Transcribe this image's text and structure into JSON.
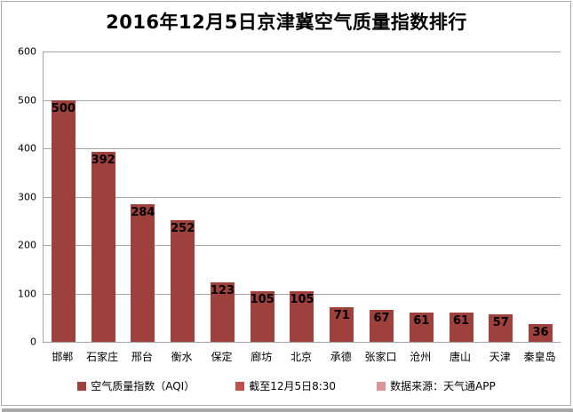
{
  "frame": {
    "background": "#FFFFFF",
    "border_color": "#ABABAB",
    "shadow_color": "#A9A9A9"
  },
  "chart_data": {
    "type": "bar",
    "title": "2016年12月5日京津冀空气质量指数排行",
    "categories": [
      "邯郸",
      "石家庄",
      "邢台",
      "衡水",
      "保定",
      "廊坊",
      "北京",
      "承德",
      "张家口",
      "沧州",
      "唐山",
      "天津",
      "秦皇岛"
    ],
    "values": [
      500,
      392,
      284,
      252,
      123,
      105,
      105,
      71,
      67,
      61,
      61,
      57,
      36
    ],
    "xlabel": "",
    "ylabel": "",
    "ylim": [
      0,
      600
    ],
    "yticks": [
      0,
      100,
      200,
      300,
      400,
      500,
      600
    ],
    "grid": true,
    "data_labels_position": "inside-end",
    "legend_position": "bottom",
    "bar_color": "#9E403C",
    "gridline_color": "#A6A6A6"
  },
  "legend": {
    "items": [
      {
        "label": "空气质量指数（AQI）",
        "color": "#9E403C"
      },
      {
        "label": "截至12月5日8:30",
        "color": "#C0504D"
      },
      {
        "label": "数据来源：天气通APP",
        "color": "#D99694"
      }
    ]
  }
}
